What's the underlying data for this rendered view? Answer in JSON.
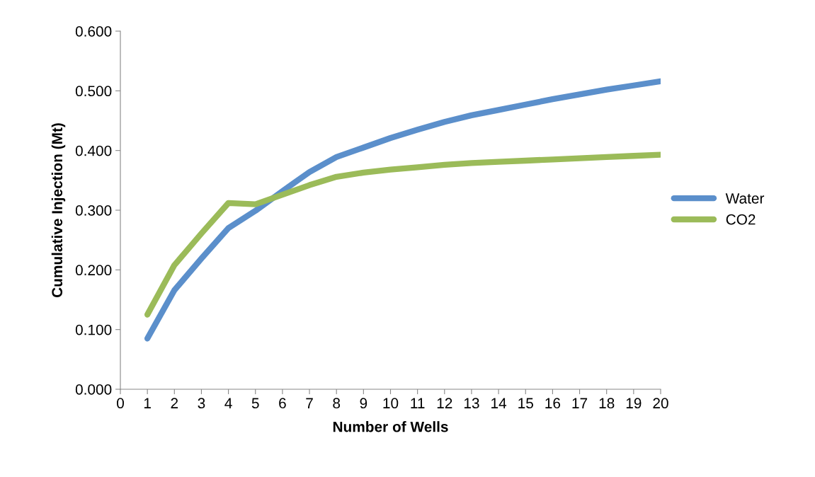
{
  "chart_data": {
    "type": "line",
    "xlabel": "Number of Wells",
    "ylabel": "Cumulative Injection (Mt)",
    "x": [
      1,
      2,
      3,
      4,
      5,
      6,
      7,
      8,
      9,
      10,
      11,
      12,
      13,
      14,
      15,
      16,
      17,
      18,
      19,
      20
    ],
    "series": [
      {
        "name": "Water",
        "color": "#5b8fcb",
        "values": [
          0.085,
          0.166,
          0.219,
          0.27,
          0.299,
          0.332,
          0.364,
          0.389,
          0.405,
          0.421,
          0.435,
          0.448,
          0.459,
          0.468,
          0.477,
          0.486,
          0.494,
          0.502,
          0.509,
          0.516
        ]
      },
      {
        "name": "CO2",
        "color": "#9bbb59",
        "values": [
          0.125,
          0.208,
          0.261,
          0.312,
          0.31,
          0.326,
          0.342,
          0.356,
          0.363,
          0.368,
          0.372,
          0.376,
          0.379,
          0.381,
          0.383,
          0.385,
          0.387,
          0.389,
          0.391,
          0.393
        ]
      }
    ],
    "xlim": [
      0,
      20
    ],
    "xticks": [
      0,
      1,
      2,
      3,
      4,
      5,
      6,
      7,
      8,
      9,
      10,
      11,
      12,
      13,
      14,
      15,
      16,
      17,
      18,
      19,
      20
    ],
    "ylim": [
      0,
      0.6
    ],
    "yticks": [
      {
        "value": 0,
        "label": "0.000"
      },
      {
        "value": 0.1,
        "label": "0.100"
      },
      {
        "value": 0.2,
        "label": "0.200"
      },
      {
        "value": 0.3,
        "label": "0.300"
      },
      {
        "value": 0.4,
        "label": "0.400"
      },
      {
        "value": 0.5,
        "label": "0.500"
      },
      {
        "value": 0.6,
        "label": "0.600"
      }
    ],
    "grid": false,
    "legend": "right",
    "marker": "none",
    "line_style": "solid"
  }
}
